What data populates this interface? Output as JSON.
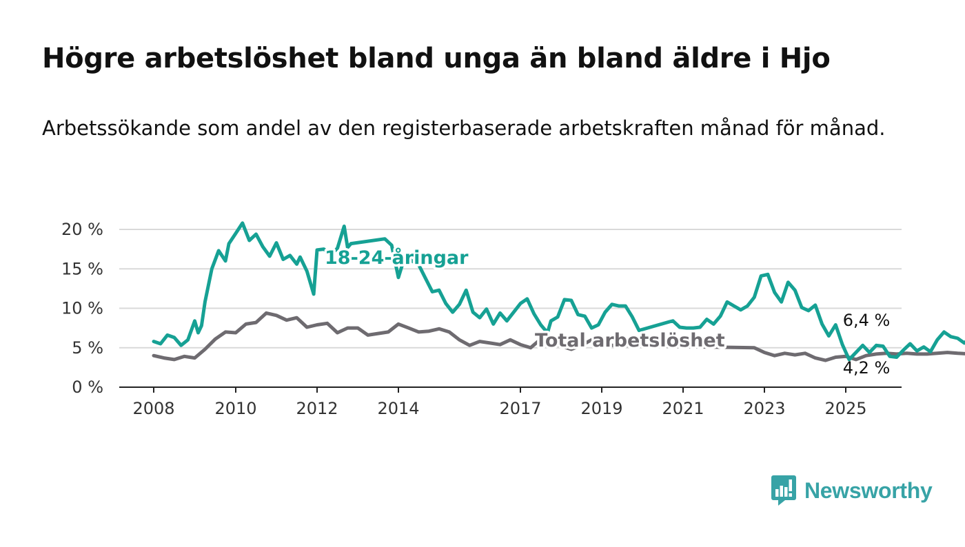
{
  "title": "Högre arbetslöshet bland unga än bland äldre i Hjo",
  "subtitle": "Arbetssökande som andel av den registerbaserade arbetskraften månad för månad.",
  "brand": {
    "name": "Newsworthy",
    "color": "#37a3a6",
    "icon": "newsworthy-logo-icon"
  },
  "chart_data": {
    "type": "line",
    "x_axis": {
      "type": "date",
      "ticks": [
        "2008",
        "2010",
        "2012",
        "2014",
        "2017",
        "2019",
        "2021",
        "2023",
        "2025"
      ]
    },
    "y_axis": {
      "ticks": [
        "0 %",
        "5 %",
        "10 %",
        "15 %",
        "20 %"
      ],
      "range": [
        0,
        20
      ]
    },
    "grid": true,
    "series": [
      {
        "name": "18-24-åringar",
        "color": "#16a194",
        "end_label": "6,4 %",
        "points": [
          [
            "2008-01",
            5.8
          ],
          [
            "2008-03",
            5.5
          ],
          [
            "2008-05",
            6.6
          ],
          [
            "2008-07",
            6.3
          ],
          [
            "2008-09",
            5.3
          ],
          [
            "2008-11",
            6.0
          ],
          [
            "2009-01",
            8.4
          ],
          [
            "2009-02",
            6.9
          ],
          [
            "2009-03",
            7.8
          ],
          [
            "2009-04",
            10.8
          ],
          [
            "2009-06",
            15.0
          ],
          [
            "2009-08",
            17.3
          ],
          [
            "2009-10",
            16.0
          ],
          [
            "2009-11",
            18.2
          ],
          [
            "2010-01",
            19.5
          ],
          [
            "2010-03",
            20.8
          ],
          [
            "2010-05",
            18.6
          ],
          [
            "2010-07",
            19.4
          ],
          [
            "2010-09",
            17.8
          ],
          [
            "2010-11",
            16.6
          ],
          [
            "2011-01",
            18.3
          ],
          [
            "2011-03",
            16.2
          ],
          [
            "2011-05",
            16.7
          ],
          [
            "2011-07",
            15.6
          ],
          [
            "2011-08",
            16.5
          ],
          [
            "2011-10",
            14.7
          ],
          [
            "2011-12",
            11.8
          ],
          [
            "2012-01",
            17.4
          ],
          [
            "2012-03",
            17.5
          ],
          [
            "2012-05",
            16.8
          ],
          [
            "2012-07",
            17.6
          ],
          [
            "2012-09",
            20.4
          ],
          [
            "2012-10",
            17.7
          ],
          [
            "2012-11",
            18.2
          ],
          [
            "2013-09",
            18.8
          ],
          [
            "2013-11",
            18.0
          ],
          [
            "2014-01",
            13.9
          ],
          [
            "2014-03",
            16.7
          ],
          [
            "2014-05",
            16.0
          ],
          [
            "2014-07",
            15.5
          ],
          [
            "2014-09",
            13.8
          ],
          [
            "2014-11",
            12.1
          ],
          [
            "2015-01",
            12.3
          ],
          [
            "2015-03",
            10.6
          ],
          [
            "2015-05",
            9.5
          ],
          [
            "2015-07",
            10.5
          ],
          [
            "2015-09",
            12.3
          ],
          [
            "2015-11",
            9.5
          ],
          [
            "2016-01",
            8.8
          ],
          [
            "2016-03",
            9.9
          ],
          [
            "2016-05",
            8.0
          ],
          [
            "2016-07",
            9.4
          ],
          [
            "2016-09",
            8.4
          ],
          [
            "2016-11",
            9.5
          ],
          [
            "2017-01",
            10.6
          ],
          [
            "2017-03",
            11.2
          ],
          [
            "2017-05",
            9.3
          ],
          [
            "2017-07",
            7.9
          ],
          [
            "2017-09",
            6.9
          ],
          [
            "2017-10",
            8.4
          ],
          [
            "2017-12",
            8.9
          ],
          [
            "2018-02",
            11.1
          ],
          [
            "2018-04",
            11.0
          ],
          [
            "2018-06",
            9.2
          ],
          [
            "2018-08",
            9.0
          ],
          [
            "2018-10",
            7.5
          ],
          [
            "2018-12",
            7.9
          ],
          [
            "2019-02",
            9.5
          ],
          [
            "2019-04",
            10.5
          ],
          [
            "2019-06",
            10.3
          ],
          [
            "2019-08",
            10.3
          ],
          [
            "2019-10",
            8.9
          ],
          [
            "2019-12",
            7.2
          ],
          [
            "2020-09",
            8.3
          ],
          [
            "2020-10",
            8.4
          ],
          [
            "2020-12",
            7.6
          ],
          [
            "2021-02",
            7.5
          ],
          [
            "2021-04",
            7.5
          ],
          [
            "2021-06",
            7.6
          ],
          [
            "2021-08",
            8.6
          ],
          [
            "2021-10",
            8.0
          ],
          [
            "2021-12",
            9.0
          ],
          [
            "2022-02",
            10.8
          ],
          [
            "2022-04",
            10.3
          ],
          [
            "2022-06",
            9.8
          ],
          [
            "2022-08",
            10.3
          ],
          [
            "2022-10",
            11.4
          ],
          [
            "2022-12",
            14.1
          ],
          [
            "2023-02",
            14.3
          ],
          [
            "2023-04",
            12.0
          ],
          [
            "2023-06",
            10.8
          ],
          [
            "2023-08",
            13.3
          ],
          [
            "2023-10",
            12.3
          ],
          [
            "2023-12",
            10.1
          ],
          [
            "2024-02",
            9.7
          ],
          [
            "2024-04",
            10.4
          ],
          [
            "2024-06",
            8.0
          ],
          [
            "2024-08",
            6.5
          ],
          [
            "2024-10",
            7.9
          ],
          [
            "2024-12",
            5.4
          ],
          [
            "2025-02",
            3.5
          ],
          [
            "2025-04",
            4.4
          ],
          [
            "2025-06",
            5.3
          ],
          [
            "2025-08",
            4.4
          ],
          [
            "2025-10",
            5.3
          ],
          [
            "2025-12",
            5.2
          ],
          [
            "2026-02",
            3.9
          ],
          [
            "2026-04",
            3.8
          ],
          [
            "2026-06",
            4.7
          ],
          [
            "2026-08",
            5.5
          ],
          [
            "2026-10",
            4.6
          ],
          [
            "2026-12",
            5.1
          ],
          [
            "2027-02",
            4.5
          ],
          [
            "2027-04",
            6.0
          ],
          [
            "2027-06",
            7.0
          ],
          [
            "2027-08",
            6.4
          ],
          [
            "2027-10",
            6.2
          ],
          [
            "2027-12",
            5.6
          ],
          [
            "2028-02",
            6.4
          ]
        ]
      },
      {
        "name": "Total arbetslöshet",
        "color": "#6e6b70",
        "end_label": "4,2 %",
        "points": [
          [
            "2008-01",
            4.0
          ],
          [
            "2008-04",
            3.7
          ],
          [
            "2008-07",
            3.5
          ],
          [
            "2008-10",
            3.9
          ],
          [
            "2009-01",
            3.7
          ],
          [
            "2009-04",
            4.8
          ],
          [
            "2009-07",
            6.1
          ],
          [
            "2009-10",
            7.0
          ],
          [
            "2010-01",
            6.9
          ],
          [
            "2010-04",
            8.0
          ],
          [
            "2010-07",
            8.2
          ],
          [
            "2010-10",
            9.4
          ],
          [
            "2011-01",
            9.1
          ],
          [
            "2011-04",
            8.5
          ],
          [
            "2011-07",
            8.8
          ],
          [
            "2011-10",
            7.6
          ],
          [
            "2012-01",
            7.9
          ],
          [
            "2012-04",
            8.1
          ],
          [
            "2012-07",
            6.9
          ],
          [
            "2012-10",
            7.5
          ],
          [
            "2013-01",
            7.5
          ],
          [
            "2013-04",
            6.6
          ],
          [
            "2013-07",
            6.8
          ],
          [
            "2013-10",
            7.0
          ],
          [
            "2014-01",
            8.0
          ],
          [
            "2014-04",
            7.5
          ],
          [
            "2014-07",
            7.0
          ],
          [
            "2014-10",
            7.1
          ],
          [
            "2015-01",
            7.4
          ],
          [
            "2015-04",
            7.0
          ],
          [
            "2015-07",
            6.0
          ],
          [
            "2015-10",
            5.3
          ],
          [
            "2016-01",
            5.8
          ],
          [
            "2016-04",
            5.6
          ],
          [
            "2016-07",
            5.4
          ],
          [
            "2016-10",
            6.0
          ],
          [
            "2017-01",
            5.4
          ],
          [
            "2017-04",
            5.0
          ],
          [
            "2017-07",
            6.1
          ],
          [
            "2017-10",
            5.6
          ],
          [
            "2018-01",
            5.2
          ],
          [
            "2018-04",
            4.8
          ],
          [
            "2018-07",
            5.3
          ],
          [
            "2018-10",
            6.0
          ],
          [
            "2019-01",
            5.5
          ],
          [
            "2019-04",
            5.3
          ],
          [
            "2022-10",
            5.0
          ],
          [
            "2023-01",
            4.4
          ],
          [
            "2023-04",
            4.0
          ],
          [
            "2023-07",
            4.3
          ],
          [
            "2023-10",
            4.1
          ],
          [
            "2024-01",
            4.3
          ],
          [
            "2024-04",
            3.7
          ],
          [
            "2024-07",
            3.4
          ],
          [
            "2024-10",
            3.8
          ],
          [
            "2025-01",
            3.9
          ],
          [
            "2025-04",
            3.5
          ],
          [
            "2025-07",
            4.0
          ],
          [
            "2025-10",
            4.2
          ],
          [
            "2026-01",
            4.3
          ],
          [
            "2026-04",
            4.2
          ],
          [
            "2026-07",
            4.3
          ],
          [
            "2026-10",
            4.2
          ],
          [
            "2027-01",
            4.2
          ],
          [
            "2027-04",
            4.3
          ],
          [
            "2027-07",
            4.4
          ],
          [
            "2027-10",
            4.3
          ],
          [
            "2028-02",
            4.2
          ]
        ]
      }
    ]
  }
}
